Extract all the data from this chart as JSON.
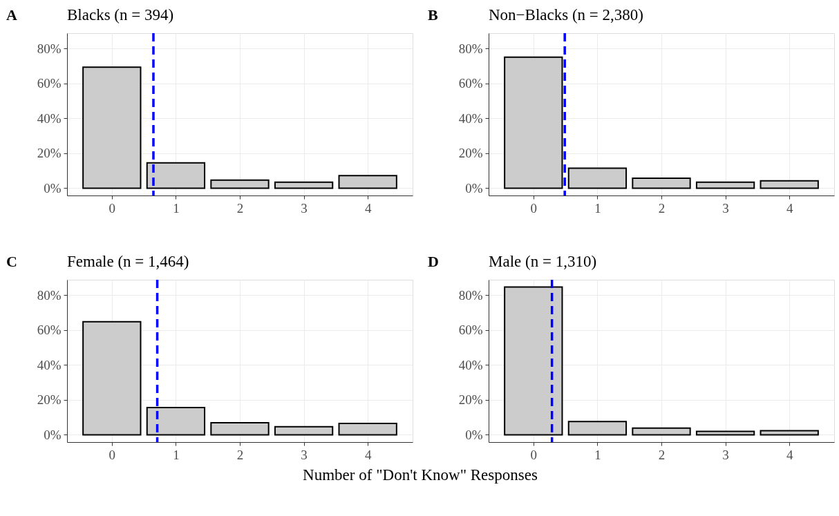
{
  "chart_data": [
    {
      "type": "bar",
      "title": "Blacks (n = 394)",
      "annotations": [
        "A"
      ],
      "x": [
        0,
        1,
        2,
        3,
        4
      ],
      "values": [
        69.3,
        14.5,
        4.6,
        3.4,
        7.2
      ],
      "color": "#cccccc",
      "xlim": [
        -0.7,
        4.7
      ],
      "xticks": [
        0,
        1,
        2,
        3,
        4
      ],
      "ylim": [
        -4.2,
        88.8
      ],
      "yticks": [
        {
          "value": 0,
          "label": "0%"
        },
        {
          "value": 20,
          "label": "20%"
        },
        {
          "value": 40,
          "label": "40%"
        },
        {
          "value": 60,
          "label": "60%"
        },
        {
          "value": 80,
          "label": "80%"
        }
      ],
      "grid": true,
      "ref_lines": [
        {
          "axis": "x",
          "value": 0.65,
          "color": "#0000ff",
          "line_style": "dashed"
        }
      ]
    },
    {
      "type": "bar",
      "title": "Non−Blacks (n = 2,380)",
      "annotations": [
        "B"
      ],
      "x": [
        0,
        1,
        2,
        3,
        4
      ],
      "values": [
        75.0,
        11.4,
        5.7,
        3.4,
        4.2
      ],
      "color": "#cccccc",
      "xlim": [
        -0.7,
        4.7
      ],
      "xticks": [
        0,
        1,
        2,
        3,
        4
      ],
      "ylim": [
        -4.2,
        88.8
      ],
      "yticks": [
        {
          "value": 0,
          "label": "0%"
        },
        {
          "value": 20,
          "label": "20%"
        },
        {
          "value": 40,
          "label": "40%"
        },
        {
          "value": 60,
          "label": "60%"
        },
        {
          "value": 80,
          "label": "80%"
        }
      ],
      "grid": true,
      "ref_lines": [
        {
          "axis": "x",
          "value": 0.49,
          "color": "#0000ff",
          "line_style": "dashed"
        }
      ]
    },
    {
      "type": "bar",
      "title": "Female (n = 1,464)",
      "annotations": [
        "C"
      ],
      "xlabel": "Number of \"Don't Know\" Responses",
      "x": [
        0,
        1,
        2,
        3,
        4
      ],
      "values": [
        64.8,
        15.6,
        6.9,
        4.6,
        6.5
      ],
      "color": "#cccccc",
      "xlim": [
        -0.7,
        4.7
      ],
      "xticks": [
        0,
        1,
        2,
        3,
        4
      ],
      "ylim": [
        -4.2,
        88.8
      ],
      "yticks": [
        {
          "value": 0,
          "label": "0%"
        },
        {
          "value": 20,
          "label": "20%"
        },
        {
          "value": 40,
          "label": "40%"
        },
        {
          "value": 60,
          "label": "60%"
        },
        {
          "value": 80,
          "label": "80%"
        }
      ],
      "grid": true,
      "ref_lines": [
        {
          "axis": "x",
          "value": 0.71,
          "color": "#0000ff",
          "line_style": "dashed"
        }
      ]
    },
    {
      "type": "bar",
      "title": "Male (n = 1,310)",
      "annotations": [
        "D"
      ],
      "x": [
        0,
        1,
        2,
        3,
        4
      ],
      "values": [
        84.6,
        7.6,
        3.8,
        1.9,
        2.3
      ],
      "color": "#cccccc",
      "xlim": [
        -0.7,
        4.7
      ],
      "xticks": [
        0,
        1,
        2,
        3,
        4
      ],
      "ylim": [
        -4.2,
        88.8
      ],
      "yticks": [
        {
          "value": 0,
          "label": "0%"
        },
        {
          "value": 20,
          "label": "20%"
        },
        {
          "value": 40,
          "label": "40%"
        },
        {
          "value": 60,
          "label": "60%"
        },
        {
          "value": 80,
          "label": "80%"
        }
      ],
      "grid": true,
      "ref_lines": [
        {
          "axis": "x",
          "value": 0.29,
          "color": "#0000ff",
          "line_style": "dashed"
        }
      ]
    }
  ]
}
